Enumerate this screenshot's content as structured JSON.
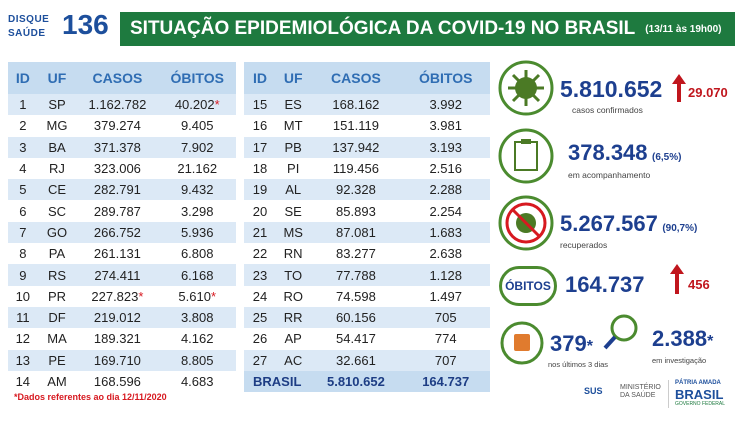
{
  "header": {
    "logo_top": "DISQUE",
    "logo_bottom": "SAÚDE",
    "logo_number": "136",
    "title": "SITUAÇÃO EPIDEMIOLÓGICA DA COVID-19 NO BRASIL",
    "date": "(13/11 às 19h00)"
  },
  "tables": {
    "left": {
      "columns": [
        "ID",
        "UF",
        "CASOS",
        "ÓBITOS"
      ],
      "rows": [
        [
          "1",
          "SP",
          "1.162.782",
          {
            "text": "40.202",
            "mark": "*"
          }
        ],
        [
          "2",
          "MG",
          "379.274",
          "9.405"
        ],
        [
          "3",
          "BA",
          "371.378",
          "7.902"
        ],
        [
          "4",
          "RJ",
          "323.006",
          "21.162"
        ],
        [
          "5",
          "CE",
          "282.791",
          "9.432"
        ],
        [
          "6",
          "SC",
          "289.787",
          "3.298"
        ],
        [
          "7",
          "GO",
          "266.752",
          "5.936"
        ],
        [
          "8",
          "PA",
          "261.131",
          "6.808"
        ],
        [
          "9",
          "RS",
          "274.411",
          "6.168"
        ],
        [
          "10",
          "PR",
          {
            "text": "227.823",
            "mark": "*"
          },
          {
            "text": "5.610",
            "mark": "*"
          }
        ],
        [
          "11",
          "DF",
          "219.012",
          "3.808"
        ],
        [
          "12",
          "MA",
          "189.321",
          "4.162"
        ],
        [
          "13",
          "PE",
          "169.710",
          "8.805"
        ],
        [
          "14",
          "AM",
          "168.596",
          "4.683"
        ]
      ]
    },
    "right": {
      "columns": [
        "ID",
        "UF",
        "CASOS",
        "ÓBITOS"
      ],
      "rows": [
        [
          "15",
          "ES",
          "168.162",
          "3.992"
        ],
        [
          "16",
          "MT",
          "151.119",
          "3.981"
        ],
        [
          "17",
          "PB",
          "137.942",
          "3.193"
        ],
        [
          "18",
          "PI",
          "119.456",
          "2.516"
        ],
        [
          "19",
          "AL",
          "92.328",
          "2.288"
        ],
        [
          "20",
          "SE",
          "85.893",
          "2.254"
        ],
        [
          "21",
          "MS",
          "87.081",
          "1.683"
        ],
        [
          "22",
          "RN",
          "83.277",
          "2.638"
        ],
        [
          "23",
          "TO",
          "77.788",
          "1.128"
        ],
        [
          "24",
          "RO",
          "74.598",
          "1.497"
        ],
        [
          "25",
          "RR",
          "60.156",
          "705"
        ],
        [
          "26",
          "AP",
          "54.417",
          "774"
        ],
        [
          "27",
          "AC",
          "32.661",
          "707"
        ]
      ],
      "total": [
        "BRASIL",
        "5.810.652",
        "164.737"
      ]
    }
  },
  "panels": {
    "confirmed": {
      "value": "5.810.652",
      "delta": "29.070",
      "caption": "casos confirmados"
    },
    "monitoring": {
      "value": "378.348",
      "percent": "(6,5%)",
      "caption": "em acompanhamento"
    },
    "recovered": {
      "value": "5.267.567",
      "percent": "(90,7%)",
      "caption": "recuperados"
    },
    "deaths": {
      "label": "ÓBITOS",
      "value": "164.737",
      "delta": "456"
    },
    "recent": {
      "value": "379",
      "mark": "*",
      "caption": "nos últimos 3 dias"
    },
    "investigation": {
      "value": "2.388",
      "mark": "*",
      "caption": "em investigação"
    }
  },
  "footnote": "*Dados referentes ao dia 12/11/2020",
  "logos": {
    "sus": "SUS",
    "ministry": "MINISTÉRIO DA SAÚDE",
    "motto": "PÁTRIA AMADA",
    "country": "BRASIL",
    "government": "GOVERNO FEDERAL"
  }
}
